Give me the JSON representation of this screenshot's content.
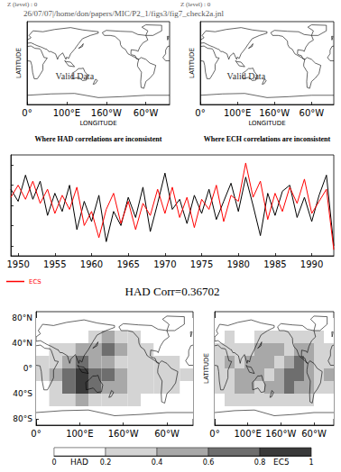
{
  "header": "26/07/07|/home/don/papers/MIC/P2_1/figs3/fig7_check2a.jnl",
  "chart_data": [
    {
      "type": "map",
      "subtitle": "Z (level) : 0",
      "title": "Where HAD correlations are inconsistent",
      "annotation": "Valid Data",
      "xlabel": "LONGITUDE",
      "ylabel": "LATITUDE",
      "xlim": [
        0,
        360
      ],
      "ylim": [
        -90,
        90
      ],
      "xticks": [
        {
          "value": 0,
          "label": "0°"
        },
        {
          "value": 100,
          "label": "100°E"
        },
        {
          "value": 200,
          "label": "160°W"
        },
        {
          "value": 300,
          "label": "60°W"
        }
      ],
      "tick_labels": "x"
    },
    {
      "type": "map",
      "subtitle": "Z (level) : 0",
      "title": "Where ECH correlations are inconsistent",
      "annotation": "Valid Data",
      "xlabel": "LONGITUDE",
      "ylabel": "LATITUDE",
      "xlim": [
        0,
        360
      ],
      "ylim": [
        -90,
        90
      ],
      "xticks": [
        {
          "value": 0,
          "label": "0°"
        },
        {
          "value": 100,
          "label": "100°E"
        },
        {
          "value": 200,
          "label": "160°W"
        },
        {
          "value": 300,
          "label": "60°W"
        }
      ],
      "tick_labels": "x"
    },
    {
      "type": "line",
      "annotation": "HAD Corr=0.36702",
      "x": [
        1949,
        1950,
        1951,
        1952,
        1953,
        1954,
        1955,
        1956,
        1957,
        1958,
        1959,
        1960,
        1961,
        1962,
        1963,
        1964,
        1965,
        1966,
        1967,
        1968,
        1969,
        1970,
        1971,
        1972,
        1973,
        1974,
        1975,
        1976,
        1977,
        1978,
        1979,
        1980,
        1981,
        1982,
        1983,
        1984,
        1985,
        1986,
        1987,
        1988,
        1989,
        1990,
        1991,
        1992,
        1993
      ],
      "xlim": [
        1949,
        1993
      ],
      "xticks": [
        1950,
        1955,
        1960,
        1965,
        1970,
        1975,
        1980,
        1985,
        1990
      ],
      "ylim": [
        -2.5,
        2.5
      ],
      "yticks": [
        -2,
        -1,
        0,
        1,
        2
      ],
      "tick_labels": "x",
      "grid": false,
      "legend": "lower left",
      "series": [
        {
          "color": "#000000",
          "values": [
            0.8,
            0.2,
            1.5,
            0.3,
            1.2,
            -0.5,
            0.6,
            -0.3,
            1.0,
            -1.2,
            0.2,
            -0.8,
            0.5,
            -1.8,
            -0.3,
            -1.0,
            0.4,
            -0.6,
            0.9,
            -1.3,
            0.1,
            1.6,
            -0.2,
            0.3,
            -0.9,
            0.5,
            -0.4,
            0.8,
            -0.7,
            0.2,
            1.1,
            -0.3,
            1.4,
            0,
            -1.5,
            0.6,
            -0.5,
            0.7,
            1.0,
            -0.6,
            0.4,
            -0.8,
            0.5,
            1.5,
            -2.0
          ]
        },
        {
          "name": "ECS",
          "color": "#ff0000",
          "values": [
            0.4,
            1.0,
            0.3,
            1.2,
            0.1,
            0.8,
            -0.4,
            0.5,
            -0.2,
            0.9,
            -1.0,
            -0.3,
            -1.6,
            -0.2,
            0.6,
            -0.9,
            0.2,
            -1.2,
            0.1,
            -0.5,
            0.8,
            -0.4,
            0.9,
            -0.6,
            0.4,
            -1.1,
            0.3,
            -0.2,
            1.0,
            -0.8,
            0.5,
            0.2,
            2.1,
            0.4,
            1.2,
            -0.7,
            0.6,
            -0.3,
            0.9,
            0.1,
            1.3,
            -0.4,
            0.2,
            0.8,
            -2.2
          ]
        }
      ]
    },
    {
      "type": "map",
      "title": "HAD",
      "xlim": [
        0,
        360
      ],
      "ylim": [
        -90,
        90
      ],
      "xticks": [
        {
          "value": 0,
          "label": "0°"
        },
        {
          "value": 100,
          "label": "100°E"
        },
        {
          "value": 200,
          "label": "160°W"
        },
        {
          "value": 300,
          "label": "60°W"
        }
      ],
      "yticks": [
        {
          "value": 80,
          "label": "80°N"
        },
        {
          "value": 40,
          "label": "40°N"
        },
        {
          "value": 0,
          "label": "0°"
        },
        {
          "value": -40,
          "label": "40°S"
        },
        {
          "value": -80,
          "label": "80°S"
        }
      ],
      "lon": [
        15,
        45,
        75,
        105,
        135,
        165,
        195,
        225,
        255,
        285,
        315,
        345
      ],
      "lat": [
        70,
        50,
        30,
        10,
        -10,
        -30,
        -50,
        -70
      ],
      "cells": [
        [
          0.1,
          0.1,
          0.1,
          0.1,
          0.1,
          0.1,
          0.1,
          0.1,
          0.1,
          0.1,
          0.1,
          0.1
        ],
        [
          0.1,
          0.1,
          0.1,
          0.1,
          0.3,
          0.5,
          0.3,
          0.2,
          0.1,
          0.1,
          0.1,
          0.1
        ],
        [
          0.1,
          0.2,
          0.3,
          0.4,
          0.5,
          0.6,
          0.4,
          0.3,
          0.2,
          0.1,
          0.1,
          0.1
        ],
        [
          0.2,
          0.3,
          0.5,
          0.6,
          0.5,
          0.4,
          0.3,
          0.3,
          0.2,
          0.3,
          0.2,
          0.1
        ],
        [
          0.2,
          0.4,
          0.7,
          0.8,
          0.7,
          0.6,
          0.5,
          0.3,
          0.3,
          0.3,
          0.2,
          0.2
        ],
        [
          0.1,
          0.3,
          0.6,
          0.85,
          0.7,
          0.5,
          0.4,
          0.3,
          0.2,
          0.2,
          0.3,
          0.1
        ],
        [
          0.1,
          0.2,
          0.3,
          0.4,
          0.3,
          0.3,
          0.2,
          0.2,
          0.1,
          0.1,
          0.1,
          0.1
        ],
        [
          0.1,
          0.1,
          0.1,
          0.1,
          0.1,
          0.1,
          0.1,
          0.1,
          0.1,
          0.1,
          0.1,
          0.1
        ]
      ],
      "colorbar": {
        "range": [
          0,
          1
        ],
        "ticks": [
          0,
          0.2,
          0.4,
          0.6,
          0.8,
          1
        ],
        "colors": [
          "#ffffff",
          "#d4d4d4",
          "#a8a8a8",
          "#6e6e6e",
          "#3a3a3a"
        ]
      }
    },
    {
      "type": "map",
      "title": "EC5",
      "ylabel": "LATITUDE",
      "xlim": [
        0,
        360
      ],
      "ylim": [
        -90,
        90
      ],
      "xticks": [
        {
          "value": 0,
          "label": "0°"
        },
        {
          "value": 100,
          "label": "100°E"
        },
        {
          "value": 200,
          "label": "160°W"
        },
        {
          "value": 300,
          "label": "60°W"
        }
      ],
      "tick_labels": "x",
      "lon": [
        15,
        45,
        75,
        105,
        135,
        165,
        195,
        225,
        255,
        285,
        315,
        345
      ],
      "lat": [
        70,
        50,
        30,
        10,
        -10,
        -30,
        -50,
        -70
      ],
      "cells": [
        [
          0.1,
          0.1,
          0.1,
          0.1,
          0.1,
          0.1,
          0.1,
          0.1,
          0.1,
          0.1,
          0.1,
          0.1
        ],
        [
          0.1,
          0.2,
          0.1,
          0.1,
          0.2,
          0.3,
          0.3,
          0.2,
          0.2,
          0.3,
          0.2,
          0.1
        ],
        [
          0.2,
          0.3,
          0.2,
          0.3,
          0.4,
          0.5,
          0.4,
          0.3,
          0.4,
          0.5,
          0.3,
          0.2
        ],
        [
          0.3,
          0.4,
          0.3,
          0.4,
          0.5,
          0.4,
          0.3,
          0.5,
          0.6,
          0.4,
          0.3,
          0.3
        ],
        [
          0.3,
          0.3,
          0.4,
          0.5,
          0.4,
          0.3,
          0.4,
          0.6,
          0.7,
          0.5,
          0.3,
          0.4
        ],
        [
          0.2,
          0.3,
          0.5,
          0.4,
          0.3,
          0.4,
          0.5,
          0.6,
          0.5,
          0.4,
          0.3,
          0.2
        ],
        [
          0.1,
          0.2,
          0.2,
          0.3,
          0.2,
          0.2,
          0.3,
          0.3,
          0.2,
          0.2,
          0.1,
          0.1
        ],
        [
          0.1,
          0.1,
          0.1,
          0.1,
          0.1,
          0.1,
          0.1,
          0.1,
          0.1,
          0.1,
          0.1,
          0.1
        ]
      ],
      "colorbar": {
        "range": [
          0,
          1
        ],
        "ticks": [
          0,
          0.2,
          0.4,
          0.6,
          0.8,
          1
        ],
        "colors": [
          "#ffffff",
          "#d4d4d4",
          "#a8a8a8",
          "#6e6e6e",
          "#3a3a3a"
        ]
      }
    }
  ]
}
